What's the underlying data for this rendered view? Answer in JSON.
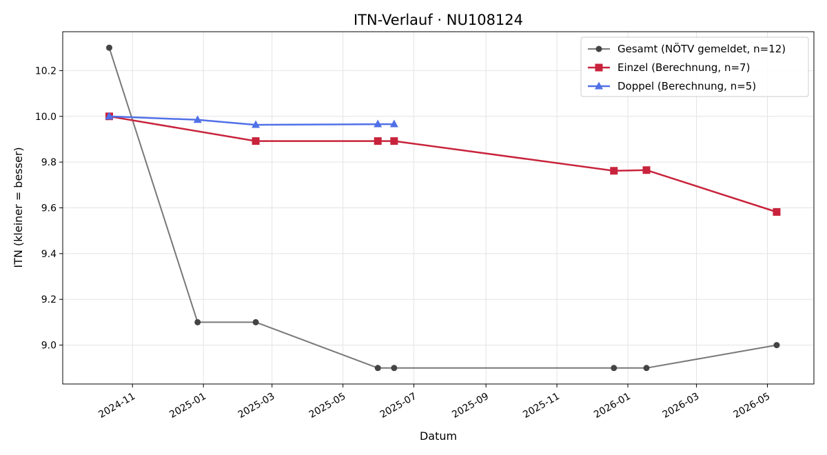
{
  "chart_data": {
    "type": "line",
    "title": "ITN-Verlauf · NU108124",
    "xlabel": "Datum",
    "ylabel": "ITN  (kleiner = besser)",
    "x_axis_type": "date",
    "xlim": [
      "2024-09-02",
      "2026-06-10"
    ],
    "ylim": [
      8.83,
      10.37
    ],
    "x_ticks": [
      "2024-11-01",
      "2025-01-01",
      "2025-03-01",
      "2025-05-01",
      "2025-07-01",
      "2025-09-01",
      "2025-11-01",
      "2026-01-01",
      "2026-03-01",
      "2026-05-01"
    ],
    "x_tick_labels": [
      "2024-11",
      "2025-01",
      "2025-03",
      "2025-05",
      "2025-07",
      "2025-09",
      "2025-11",
      "2026-01",
      "2026-03",
      "2026-05"
    ],
    "y_ticks": [
      9.0,
      9.2,
      9.4,
      9.6,
      9.8,
      10.0,
      10.2
    ],
    "y_tick_labels": [
      "9.0",
      "9.2",
      "9.4",
      "9.6",
      "9.8",
      "10.0",
      "10.2"
    ],
    "grid": true,
    "legend_position": "top-right",
    "series": [
      {
        "name": "Gesamt (NÖTV gemeldet, n=12)",
        "color": "#777777",
        "marker": "circle",
        "marker_color": "#444444",
        "points": [
          {
            "x": "2024-10-12",
            "y": 10.3
          },
          {
            "x": "2024-12-27",
            "y": 9.1
          },
          {
            "x": "2025-02-15",
            "y": 9.1
          },
          {
            "x": "2025-05-31",
            "y": 8.9
          },
          {
            "x": "2025-06-14",
            "y": 8.9
          },
          {
            "x": "2025-12-20",
            "y": 8.9
          },
          {
            "x": "2026-01-17",
            "y": 8.9
          },
          {
            "x": "2026-05-09",
            "y": 9.0
          }
        ]
      },
      {
        "name": "Einzel (Berechnung, n=7)",
        "color": "#c8233c",
        "marker": "square",
        "marker_color": "#c8233c",
        "points": [
          {
            "x": "2024-10-12",
            "y": 10.0
          },
          {
            "x": "2025-02-15",
            "y": 9.892
          },
          {
            "x": "2025-05-31",
            "y": 9.892
          },
          {
            "x": "2025-06-14",
            "y": 9.892
          },
          {
            "x": "2025-12-20",
            "y": 9.762
          },
          {
            "x": "2026-01-17",
            "y": 9.765
          },
          {
            "x": "2026-05-09",
            "y": 9.582
          }
        ]
      },
      {
        "name": "Doppel (Berechnung, n=5)",
        "color": "#5070e8",
        "marker": "triangle",
        "marker_color": "#5070e8",
        "points": [
          {
            "x": "2024-10-12",
            "y": 10.0
          },
          {
            "x": "2024-12-27",
            "y": 9.985
          },
          {
            "x": "2025-02-15",
            "y": 9.963
          },
          {
            "x": "2025-05-31",
            "y": 9.966
          },
          {
            "x": "2025-06-14",
            "y": 9.966
          }
        ]
      }
    ]
  }
}
